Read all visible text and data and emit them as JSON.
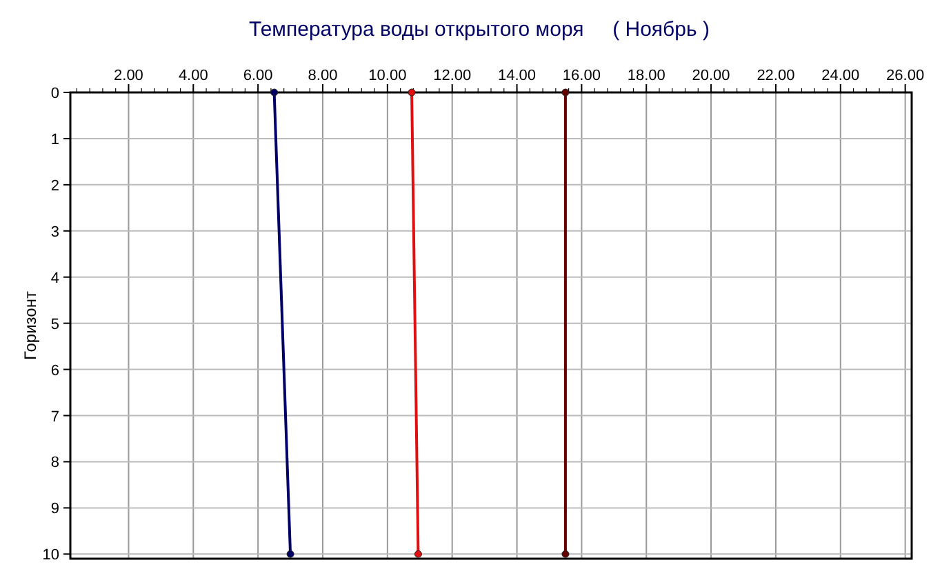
{
  "chart_data": {
    "type": "line",
    "title": "Температура воды открытого моря     ( Ноябрь )",
    "ylabel": "Горизонт",
    "xlim": [
      0.2,
      26.2
    ],
    "xticks": [
      {
        "value": 2,
        "label": "2.00"
      },
      {
        "value": 4,
        "label": "4.00"
      },
      {
        "value": 6,
        "label": "6.00"
      },
      {
        "value": 8,
        "label": "8.00"
      },
      {
        "value": 10,
        "label": "10.00"
      },
      {
        "value": 12,
        "label": "12.00"
      },
      {
        "value": 14,
        "label": "14.00"
      },
      {
        "value": 16,
        "label": "16.00"
      },
      {
        "value": 18,
        "label": "18.00"
      },
      {
        "value": 20,
        "label": "20.00"
      },
      {
        "value": 22,
        "label": "22.00"
      },
      {
        "value": 24,
        "label": "24.00"
      },
      {
        "value": 26,
        "label": "26.00"
      }
    ],
    "ylim": [
      10.1,
      0
    ],
    "yticks": [
      0,
      1,
      2,
      3,
      4,
      5,
      6,
      7,
      8,
      9,
      10
    ],
    "grid": true,
    "marker": "circle",
    "line_style": "solid",
    "series": [
      {
        "color": "#000066",
        "x": [
          6.5,
          7.0
        ],
        "values": [
          0,
          10
        ]
      },
      {
        "color": "#e01010",
        "x": [
          10.75,
          10.95
        ],
        "values": [
          0,
          10
        ]
      },
      {
        "color": "#660000",
        "x": [
          15.5,
          15.5
        ],
        "values": [
          0,
          10
        ]
      }
    ]
  }
}
